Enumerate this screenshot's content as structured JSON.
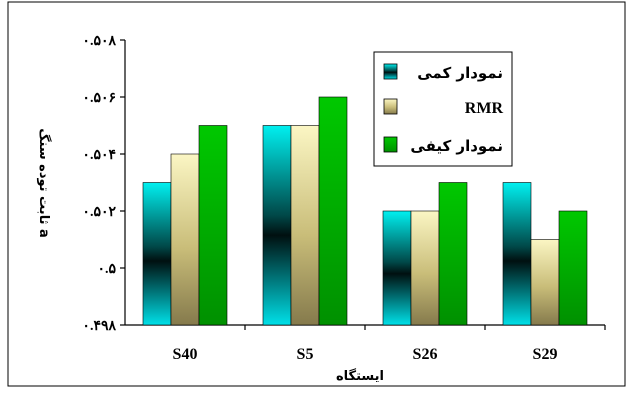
{
  "chart_data": {
    "type": "bar",
    "categories": [
      "S40",
      "S5",
      "S26",
      "S29"
    ],
    "series": [
      {
        "name": "نمودار کمی",
        "values": [
          0.503,
          0.505,
          0.502,
          0.503
        ],
        "color": "#00e5ea"
      },
      {
        "name": "RMR",
        "values": [
          0.504,
          0.505,
          0.502,
          0.501
        ],
        "color": "#f0e7a0"
      },
      {
        "name": "نمودار کیفی",
        "values": [
          0.505,
          0.506,
          0.503,
          0.502
        ],
        "color": "#00b400"
      }
    ],
    "y_tick_values": [
      0.498,
      0.5,
      0.502,
      0.504,
      0.506,
      0.508
    ],
    "y_tick_labels": [
      "۰.۴۹۸",
      "۰.۵",
      "۰.۵۰۲",
      "۰.۵۰۴",
      "۰.۵۰۶",
      "۰.۵۰۸"
    ],
    "ylim": [
      0.498,
      0.508
    ],
    "xlabel": "ایستگاه",
    "ylabel": "ثابت توده سنگ a",
    "legend_position": "top-right",
    "grid": false
  }
}
